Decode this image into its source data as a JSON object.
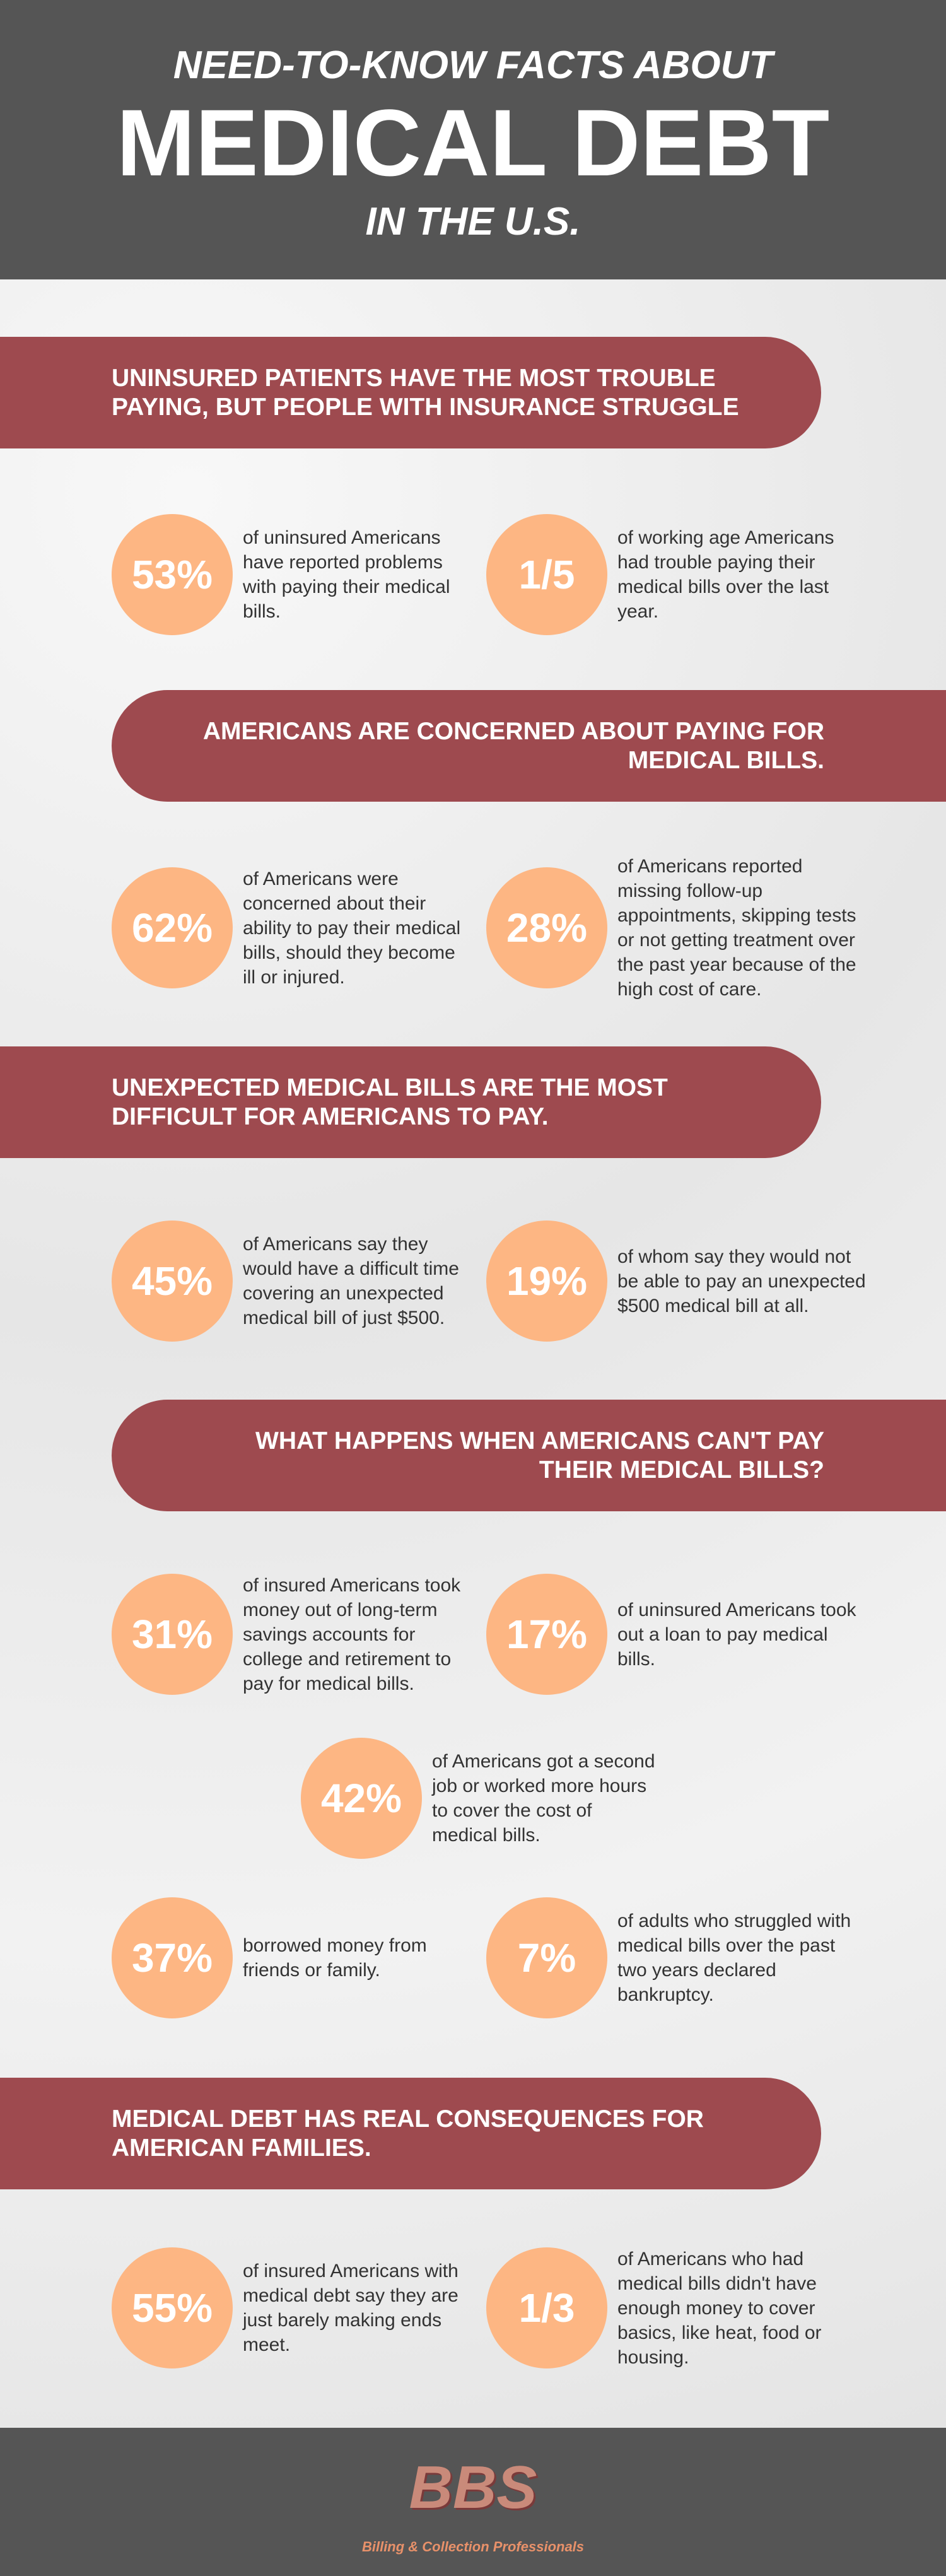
{
  "header": {
    "line1": "NEED-TO-KNOW FACTS ABOUT",
    "line2": "MEDICAL DEBT",
    "line3": "IN THE U.S."
  },
  "sections": [
    {
      "heading": "UNINSURED PATIENTS HAVE THE MOST TROUBLE PAYING, BUT PEOPLE WITH INSURANCE STRUGGLE",
      "stats": [
        {
          "figure": "53%",
          "text": "of uninsured Americans have reported problems with paying their medical bills."
        },
        {
          "figure": "1/5",
          "text": "of working age Americans had trouble paying their medical bills over the last year."
        }
      ]
    },
    {
      "heading": "AMERICANS ARE CONCERNED ABOUT PAYING FOR MEDICAL BILLS.",
      "stats": [
        {
          "figure": "62%",
          "text": "of Americans were concerned about their ability to pay their medical bills, should they become ill or injured."
        },
        {
          "figure": "28%",
          "text": "of Americans reported missing follow-up appointments, skipping tests or not getting treatment over the past year because of the high cost of care."
        }
      ]
    },
    {
      "heading": "UNEXPECTED MEDICAL BILLS ARE THE MOST DIFFICULT FOR AMERICANS TO PAY.",
      "stats": [
        {
          "figure": "45%",
          "text": "of Americans say they would have a difficult time covering an unexpected medical bill of just $500."
        },
        {
          "figure": "19%",
          "text": "of whom say they would not be able to pay an unexpected $500 medical bill at all."
        }
      ]
    },
    {
      "heading": "WHAT HAPPENS WHEN AMERICANS CAN'T PAY THEIR MEDICAL BILLS?",
      "stats": [
        {
          "figure": "31%",
          "text": "of insured Americans took money out of long-term savings accounts for college and retirement to pay for medical bills."
        },
        {
          "figure": "17%",
          "text": "of uninsured Americans took out a loan to pay medical bills."
        },
        {
          "figure": "42%",
          "text": "of Americans got a second job or worked more hours to cover the cost of medical bills."
        },
        {
          "figure": "37%",
          "text": "borrowed money from friends or family."
        },
        {
          "figure": "7%",
          "text": "of adults who struggled with medical bills over the past two years declared bankruptcy."
        }
      ]
    },
    {
      "heading": "MEDICAL DEBT HAS REAL CONSEQUENCES FOR AMERICAN FAMILIES.",
      "stats": [
        {
          "figure": "55%",
          "text": "of insured Americans with medical debt say they are just barely making ends meet."
        },
        {
          "figure": "1/3",
          "text": "of Americans who had medical bills didn't have enough money to cover basics, like heat, food or housing."
        }
      ]
    }
  ],
  "footer": {
    "logo": "BBS",
    "tagline": "Billing & Collection Professionals"
  }
}
